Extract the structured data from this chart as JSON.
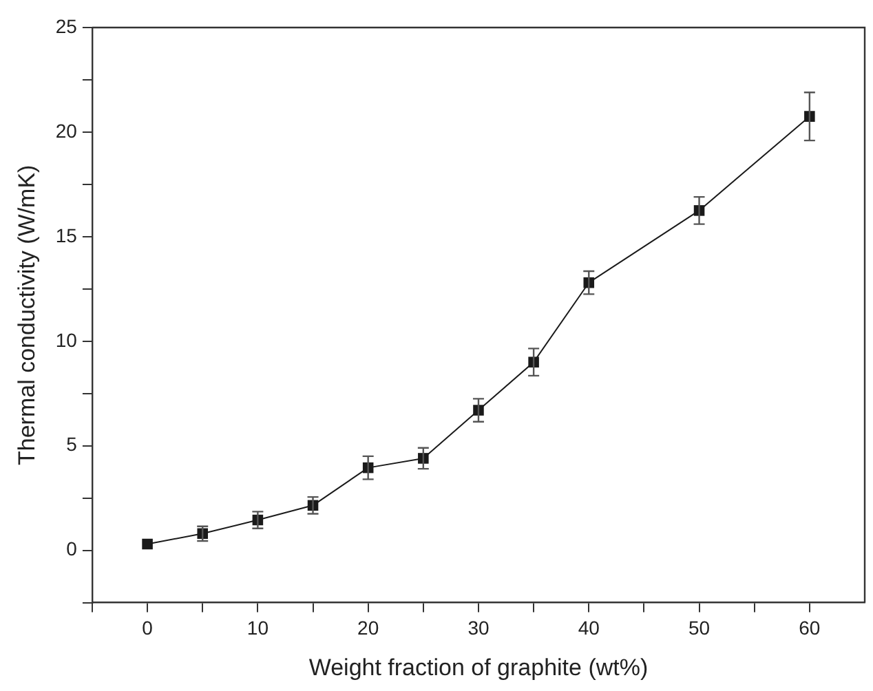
{
  "chart_data": {
    "type": "line",
    "xlabel": "Weight fraction of graphite (wt%)",
    "ylabel": "Thermal conductivity (W/mK)",
    "x": [
      0,
      5,
      10,
      15,
      20,
      25,
      30,
      35,
      40,
      50,
      60
    ],
    "series": [
      {
        "color": "#1a1a1a",
        "values": [
          0.3,
          0.8,
          1.45,
          2.15,
          3.95,
          4.4,
          6.7,
          9.0,
          12.8,
          16.25,
          20.75
        ],
        "errors": [
          null,
          0.35,
          0.4,
          0.4,
          0.55,
          0.5,
          0.55,
          0.65,
          0.55,
          0.65,
          1.15
        ]
      }
    ],
    "xlim": [
      -5,
      65
    ],
    "xticks": [
      {
        "value": -5,
        "label": null
      },
      0,
      {
        "value": 5,
        "label": null
      },
      10,
      {
        "value": 15,
        "label": null
      },
      20,
      {
        "value": 25,
        "label": null
      },
      30,
      {
        "value": 35,
        "label": null
      },
      40,
      {
        "value": 45,
        "label": null
      },
      50,
      {
        "value": 55,
        "label": null
      },
      60
    ],
    "ylim": [
      -2.5,
      25
    ],
    "yticks": [
      {
        "value": -2.5,
        "label": null
      },
      0,
      {
        "value": 2.5,
        "label": null
      },
      5,
      {
        "value": 7.5,
        "label": null
      },
      10,
      {
        "value": 12.5,
        "label": null
      },
      15,
      {
        "value": 17.5,
        "label": null
      },
      20,
      {
        "value": 22.5,
        "label": null
      },
      25
    ],
    "grid": false,
    "legend": false,
    "marker": "square",
    "line_style": "solid"
  }
}
